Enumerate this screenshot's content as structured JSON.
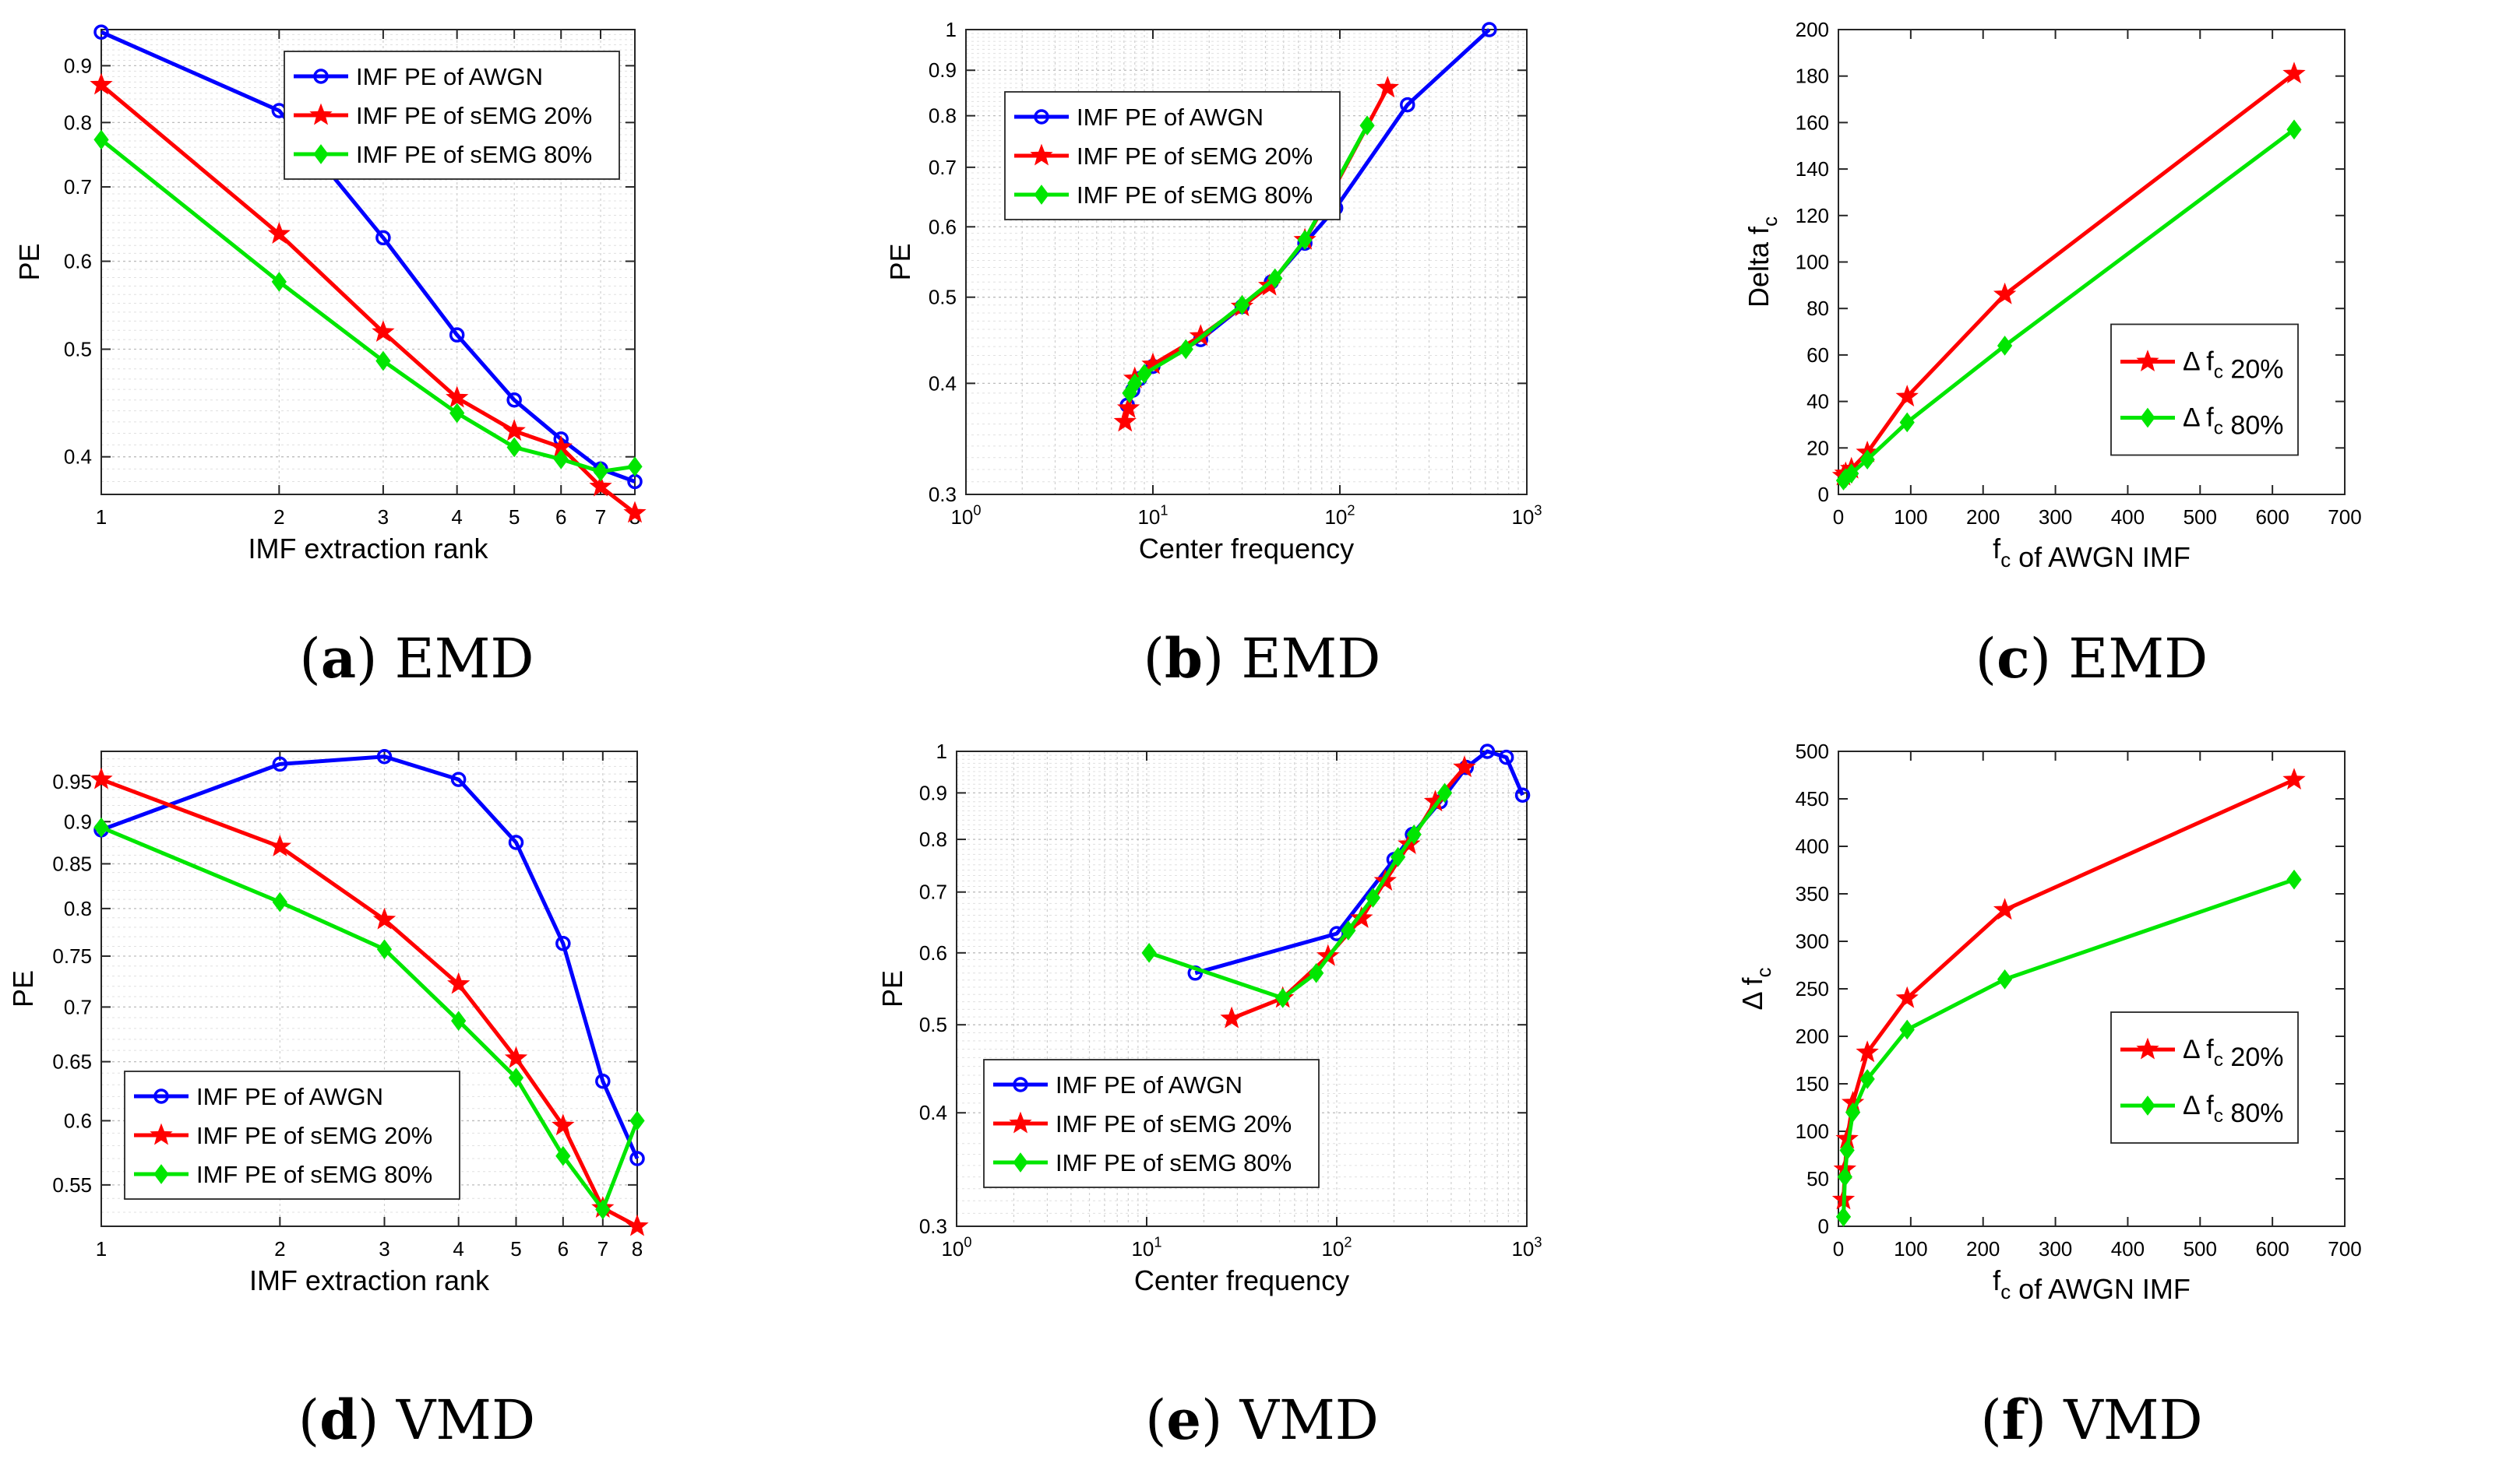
{
  "colors": {
    "awgn": "#0000ff",
    "s20": "#ff0000",
    "s80": "#00e600"
  },
  "panels": [
    {
      "letter": "(a)",
      "method": "EMD",
      "chart_data": {
        "type": "line",
        "xscale": "log",
        "yscale": "log",
        "xlim": [
          1,
          8
        ],
        "ylim": [
          0.37,
          0.97
        ],
        "xticks": [
          1,
          2,
          3,
          4,
          5,
          6,
          7,
          8
        ],
        "xtick_labels": [
          "1",
          "2",
          "3",
          "4",
          "5",
          "6",
          "7",
          "8"
        ],
        "yticks": [
          0.4,
          0.5,
          0.6,
          0.7,
          0.8,
          0.9
        ],
        "ytick_labels": [
          "0.4",
          "0.5",
          "0.6",
          "0.7",
          "0.8",
          "0.9"
        ],
        "xlabel": "IMF extraction rank",
        "ylabel": "PE",
        "grid": true,
        "legend": "top-right",
        "series": [
          {
            "name": "IMF PE of AWGN",
            "color": "awgn",
            "marker": "circle",
            "x": [
              1,
              2,
              3,
              4,
              5,
              6,
              7,
              8
            ],
            "y": [
              0.965,
              0.82,
              0.63,
              0.515,
              0.45,
              0.415,
              0.39,
              0.38
            ]
          },
          {
            "name": "IMF PE of sEMG 20%",
            "color": "s20",
            "marker": "star",
            "x": [
              1,
              2,
              3,
              4,
              5,
              6,
              7,
              8
            ],
            "y": [
              0.865,
              0.635,
              0.518,
              0.452,
              0.422,
              0.408,
              0.376,
              0.356
            ]
          },
          {
            "name": "IMF PE of sEMG 80%",
            "color": "s80",
            "marker": "diamond",
            "x": [
              1,
              2,
              3,
              4,
              5,
              6,
              7,
              8
            ],
            "y": [
              0.772,
              0.575,
              0.488,
              0.438,
              0.408,
              0.398,
              0.388,
              0.392
            ]
          }
        ]
      }
    },
    {
      "letter": "(b)",
      "method": "EMD",
      "chart_data": {
        "type": "line",
        "xscale": "log",
        "yscale": "log",
        "xlim": [
          1,
          1000
        ],
        "ylim": [
          0.3,
          1
        ],
        "xticks": [
          1,
          10,
          100,
          1000
        ],
        "xtick_labels": [
          "10^0",
          "10^1",
          "10^2",
          "10^3"
        ],
        "yticks": [
          0.3,
          0.4,
          0.5,
          0.6,
          0.7,
          0.8,
          0.9,
          1
        ],
        "ytick_labels": [
          "0.3",
          "0.4",
          "0.5",
          "0.6",
          "0.7",
          "0.8",
          "0.9",
          "1"
        ],
        "xlabel": "Center  frequency",
        "ylabel": "PE",
        "grid": true,
        "legend": "top-left",
        "series": [
          {
            "name": "IMF PE of AWGN",
            "color": "awgn",
            "marker": "circle",
            "x": [
              7.3,
              7.8,
              8.5,
              10,
              18,
              30,
              43,
              65,
              95,
              230,
              630
            ],
            "y": [
              0.378,
              0.393,
              0.405,
              0.418,
              0.448,
              0.488,
              0.52,
              0.575,
              0.63,
              0.823,
              1.0
            ]
          },
          {
            "name": "IMF PE of sEMG 20%",
            "color": "s20",
            "marker": "star",
            "x": [
              7.1,
              7.4,
              8,
              10,
              18,
              30,
              42,
              65,
              85,
              180
            ],
            "y": [
              0.362,
              0.375,
              0.405,
              0.42,
              0.452,
              0.488,
              0.515,
              0.58,
              0.64,
              0.86
            ]
          },
          {
            "name": "IMF PE of sEMG 80%",
            "color": "s80",
            "marker": "diamond",
            "x": [
              7.5,
              8,
              9,
              15,
              30,
              45,
              65,
              140
            ],
            "y": [
              0.39,
              0.4,
              0.41,
              0.437,
              0.49,
              0.525,
              0.58,
              0.78
            ]
          }
        ]
      }
    },
    {
      "letter": "(c)",
      "method": "EMD",
      "chart_data": {
        "type": "line",
        "xscale": "linear",
        "yscale": "linear",
        "xlim": [
          0,
          700
        ],
        "ylim": [
          0,
          200
        ],
        "xticks": [
          0,
          100,
          200,
          300,
          400,
          500,
          600,
          700
        ],
        "xtick_labels": [
          "0",
          "100",
          "200",
          "300",
          "400",
          "500",
          "600",
          "700"
        ],
        "yticks": [
          0,
          20,
          40,
          60,
          80,
          100,
          120,
          140,
          160,
          180,
          200
        ],
        "ytick_labels": [
          "0",
          "20",
          "40",
          "60",
          "80",
          "100",
          "120",
          "140",
          "160",
          "180",
          "200"
        ],
        "xlabel": "f_c of AWGN IMF",
        "ylabel": "Delta f_c",
        "grid": false,
        "legend": "mid-right",
        "series": [
          {
            "name": "Δ f_c 20%",
            "color": "s20",
            "marker": "star",
            "x": [
              7,
              10,
              18,
              40,
              95,
              230,
              630
            ],
            "y": [
              8,
              9,
              11,
              18,
              42,
              86,
              181
            ]
          },
          {
            "name": "Δ f_c 80%",
            "color": "s80",
            "marker": "diamond",
            "x": [
              7,
              10,
              18,
              40,
              95,
              230,
              630
            ],
            "y": [
              6,
              7,
              9,
              15,
              31,
              64,
              157
            ]
          }
        ]
      }
    },
    {
      "letter": "(d)",
      "method": "VMD",
      "chart_data": {
        "type": "line",
        "xscale": "log",
        "yscale": "log",
        "xlim": [
          1,
          8
        ],
        "ylim": [
          0.52,
          0.99
        ],
        "xticks": [
          1,
          2,
          3,
          4,
          5,
          6,
          7,
          8
        ],
        "xtick_labels": [
          "1",
          "2",
          "3",
          "4",
          "5",
          "6",
          "7",
          "8"
        ],
        "yticks": [
          0.55,
          0.6,
          0.65,
          0.7,
          0.75,
          0.8,
          0.85,
          0.9,
          0.95
        ],
        "ytick_labels": [
          "0.55",
          "0.6",
          "0.65",
          "0.7",
          "0.75",
          "0.8",
          "0.85",
          "0.9",
          "0.95"
        ],
        "xlabel": "IMF extraction rank",
        "ylabel": "PE",
        "grid": true,
        "legend": "bottom-left",
        "series": [
          {
            "name": "IMF PE of AWGN",
            "color": "awgn",
            "marker": "circle",
            "x": [
              1,
              2,
              3,
              4,
              5,
              6,
              7,
              8
            ],
            "y": [
              0.89,
              0.973,
              0.983,
              0.953,
              0.875,
              0.763,
              0.633,
              0.57
            ]
          },
          {
            "name": "IMF PE of sEMG 20%",
            "color": "s20",
            "marker": "star",
            "x": [
              1,
              2,
              3,
              4,
              5,
              6,
              7,
              8
            ],
            "y": [
              0.953,
              0.87,
              0.788,
              0.722,
              0.653,
              0.596,
              0.533,
              0.52
            ]
          },
          {
            "name": "IMF PE of sEMG 80%",
            "color": "s80",
            "marker": "diamond",
            "x": [
              1,
              2,
              3,
              4,
              5,
              6,
              7,
              8
            ],
            "y": [
              0.893,
              0.807,
              0.757,
              0.687,
              0.636,
              0.572,
              0.532,
              0.6
            ]
          }
        ]
      }
    },
    {
      "letter": "(e)",
      "method": "VMD",
      "chart_data": {
        "type": "line",
        "xscale": "log",
        "yscale": "log",
        "xlim": [
          1,
          1000
        ],
        "ylim": [
          0.3,
          1
        ],
        "xticks": [
          1,
          10,
          100,
          1000
        ],
        "xtick_labels": [
          "10^0",
          "10^1",
          "10^2",
          "10^3"
        ],
        "yticks": [
          0.3,
          0.4,
          0.5,
          0.6,
          0.7,
          0.8,
          0.9,
          1
        ],
        "ytick_labels": [
          "0.3",
          "0.4",
          "0.5",
          "0.6",
          "0.7",
          "0.8",
          "0.9",
          "1"
        ],
        "xlabel": "Center  frequency",
        "ylabel": "PE",
        "grid": true,
        "legend": "bottom-left",
        "series": [
          {
            "name": "IMF PE of AWGN",
            "color": "awgn",
            "marker": "circle",
            "x": [
              18,
              100,
              200,
              250,
              350,
              480,
              620,
              780,
              950
            ],
            "y": [
              0.57,
              0.63,
              0.76,
              0.81,
              0.88,
              0.96,
              1.0,
              0.985,
              0.895
            ]
          },
          {
            "name": "IMF PE of sEMG 20%",
            "color": "s20",
            "marker": "star",
            "x": [
              28,
              52,
              90,
              135,
              180,
              240,
              330,
              470
            ],
            "y": [
              0.508,
              0.535,
              0.595,
              0.655,
              0.72,
              0.79,
              0.88,
              0.96
            ]
          },
          {
            "name": "IMF PE of sEMG 80%",
            "color": "s80",
            "marker": "diamond",
            "x": [
              10.3,
              52,
              78,
              115,
              155,
              210,
              255,
              370
            ],
            "y": [
              0.6,
              0.535,
              0.57,
              0.635,
              0.69,
              0.765,
              0.81,
              0.9
            ]
          }
        ]
      }
    },
    {
      "letter": "(f)",
      "method": "VMD",
      "chart_data": {
        "type": "line",
        "xscale": "linear",
        "yscale": "linear",
        "xlim": [
          0,
          700
        ],
        "ylim": [
          0,
          500
        ],
        "xticks": [
          0,
          100,
          200,
          300,
          400,
          500,
          600,
          700
        ],
        "xtick_labels": [
          "0",
          "100",
          "200",
          "300",
          "400",
          "500",
          "600",
          "700"
        ],
        "yticks": [
          0,
          50,
          100,
          150,
          200,
          250,
          300,
          350,
          400,
          450,
          500
        ],
        "ytick_labels": [
          "0",
          "50",
          "100",
          "150",
          "200",
          "250",
          "300",
          "350",
          "400",
          "450",
          "500"
        ],
        "xlabel": "f_c of AWGN IMF",
        "ylabel": "Δ f_c",
        "grid": false,
        "legend": "mid-right",
        "series": [
          {
            "name": "Δ f_c 20%",
            "color": "s20",
            "marker": "star",
            "x": [
              7,
              9,
              12,
              20,
              40,
              95,
              230,
              630
            ],
            "y": [
              28,
              60,
              92,
              130,
              183,
              240,
              333,
              470
            ]
          },
          {
            "name": "Δ f_c 80%",
            "color": "s80",
            "marker": "diamond",
            "x": [
              7,
              9,
              12,
              20,
              40,
              95,
              230,
              630
            ],
            "y": [
              10,
              52,
              80,
              120,
              155,
              207,
              260,
              365
            ]
          }
        ]
      }
    }
  ]
}
